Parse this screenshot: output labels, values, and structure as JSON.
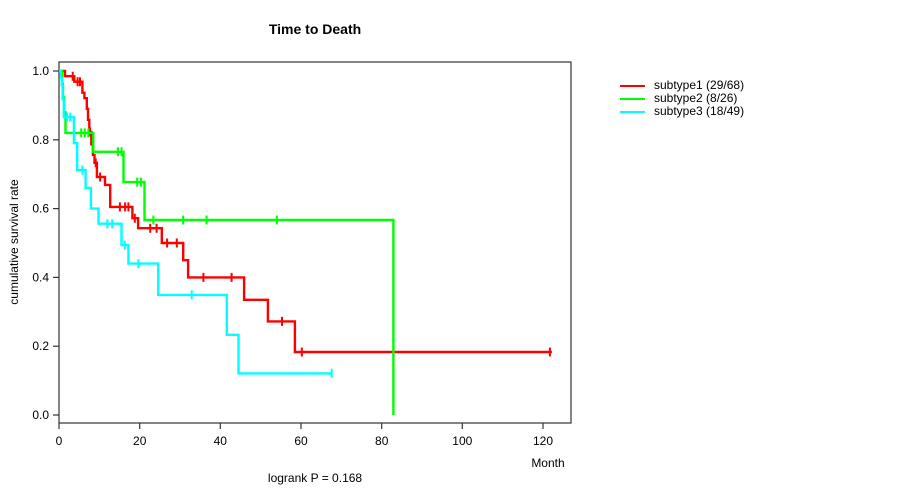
{
  "title": "Time to Death",
  "footer": {
    "logrank": "logrank P = 0.168"
  },
  "axes": {
    "x_label": "Month",
    "y_label": "cumulative survival rate",
    "x_ticks": [
      0,
      20,
      40,
      60,
      80,
      100,
      120
    ],
    "y_ticks": [
      "0.0",
      "0.2",
      "0.4",
      "0.6",
      "0.8",
      "1.0"
    ]
  },
  "legend": {
    "items": [
      {
        "label": "subtype1 (29/68)",
        "color": "#ff0000"
      },
      {
        "label": "subtype2 (8/26)",
        "color": "#00ff00"
      },
      {
        "label": "subtype3 (18/49)",
        "color": "#00ffff"
      }
    ]
  },
  "chart_data": {
    "type": "line",
    "subtype": "kaplan-meier-step",
    "title": "Time to Death",
    "xlabel": "Month",
    "ylabel": "cumulative survival rate",
    "annotation": "logrank P = 0.168",
    "xlim": [
      0,
      127
    ],
    "ylim": [
      0,
      1
    ],
    "x_ticks": [
      0,
      20,
      40,
      60,
      80,
      100,
      120
    ],
    "y_ticks": [
      0,
      0.2,
      0.4,
      0.6,
      0.8,
      1.0
    ],
    "grid": false,
    "legend_position": "right-outside",
    "series": [
      {
        "name": "subtype1 (29/68)",
        "color": "#ff0000",
        "steps": [
          [
            0,
            1.0
          ],
          [
            1.5,
            0.985
          ],
          [
            3.8,
            0.969
          ],
          [
            5.8,
            0.937
          ],
          [
            6.3,
            0.921
          ],
          [
            6.9,
            0.89
          ],
          [
            7.2,
            0.858
          ],
          [
            7.5,
            0.823
          ],
          [
            8.0,
            0.787
          ],
          [
            8.4,
            0.756
          ],
          [
            8.8,
            0.733
          ],
          [
            9.4,
            0.692
          ],
          [
            11.4,
            0.669
          ],
          [
            12.7,
            0.605
          ],
          [
            18.2,
            0.572
          ],
          [
            19.6,
            0.543
          ],
          [
            25.5,
            0.5
          ],
          [
            30.8,
            0.45
          ],
          [
            32.0,
            0.4
          ],
          [
            45.9,
            0.335
          ],
          [
            51.8,
            0.272
          ],
          [
            58.5,
            0.183
          ]
        ],
        "end_time": 122.2,
        "censors": [
          [
            3.4,
            0.985
          ],
          [
            4.6,
            0.969
          ],
          [
            5.2,
            0.969
          ],
          [
            7.7,
            0.823
          ],
          [
            9.1,
            0.733
          ],
          [
            10.2,
            0.692
          ],
          [
            15.1,
            0.605
          ],
          [
            16.4,
            0.605
          ],
          [
            17.2,
            0.605
          ],
          [
            18.8,
            0.572
          ],
          [
            22.6,
            0.543
          ],
          [
            24.2,
            0.543
          ],
          [
            26.8,
            0.5
          ],
          [
            29.2,
            0.5
          ],
          [
            35.8,
            0.4
          ],
          [
            42.8,
            0.4
          ],
          [
            55.3,
            0.272
          ],
          [
            60.2,
            0.183
          ],
          [
            121.7,
            0.183
          ]
        ]
      },
      {
        "name": "subtype2 (8/26)",
        "color": "#00ff00",
        "steps": [
          [
            0,
            1.0
          ],
          [
            0.8,
            0.962
          ],
          [
            1.0,
            0.923
          ],
          [
            1.3,
            0.88
          ],
          [
            1.6,
            0.82
          ],
          [
            8.5,
            0.765
          ],
          [
            16.0,
            0.677
          ],
          [
            21.2,
            0.567
          ],
          [
            82.9,
            0.0
          ]
        ],
        "end_time": null,
        "censors": [
          [
            5.5,
            0.82
          ],
          [
            6.4,
            0.82
          ],
          [
            7.3,
            0.82
          ],
          [
            14.6,
            0.765
          ],
          [
            15.5,
            0.765
          ],
          [
            19.4,
            0.677
          ],
          [
            20.3,
            0.677
          ],
          [
            23.4,
            0.567
          ],
          [
            30.8,
            0.567
          ],
          [
            36.6,
            0.567
          ],
          [
            54.0,
            0.567
          ]
        ]
      },
      {
        "name": "subtype3 (18/49)",
        "color": "#00ffff",
        "steps": [
          [
            0,
            1.0
          ],
          [
            0.4,
            0.98
          ],
          [
            0.7,
            0.959
          ],
          [
            0.9,
            0.918
          ],
          [
            1.2,
            0.866
          ],
          [
            3.7,
            0.79
          ],
          [
            4.5,
            0.712
          ],
          [
            6.6,
            0.66
          ],
          [
            7.9,
            0.6
          ],
          [
            9.8,
            0.556
          ],
          [
            15.5,
            0.494
          ],
          [
            17.2,
            0.44
          ],
          [
            24.6,
            0.349
          ],
          [
            41.6,
            0.233
          ],
          [
            44.5,
            0.121
          ]
        ],
        "end_time": 67.8,
        "censors": [
          [
            2.0,
            0.866
          ],
          [
            2.8,
            0.866
          ],
          [
            5.8,
            0.712
          ],
          [
            12.0,
            0.556
          ],
          [
            13.2,
            0.556
          ],
          [
            16.3,
            0.494
          ],
          [
            19.7,
            0.44
          ],
          [
            32.9,
            0.349
          ],
          [
            67.6,
            0.121
          ]
        ]
      }
    ]
  }
}
